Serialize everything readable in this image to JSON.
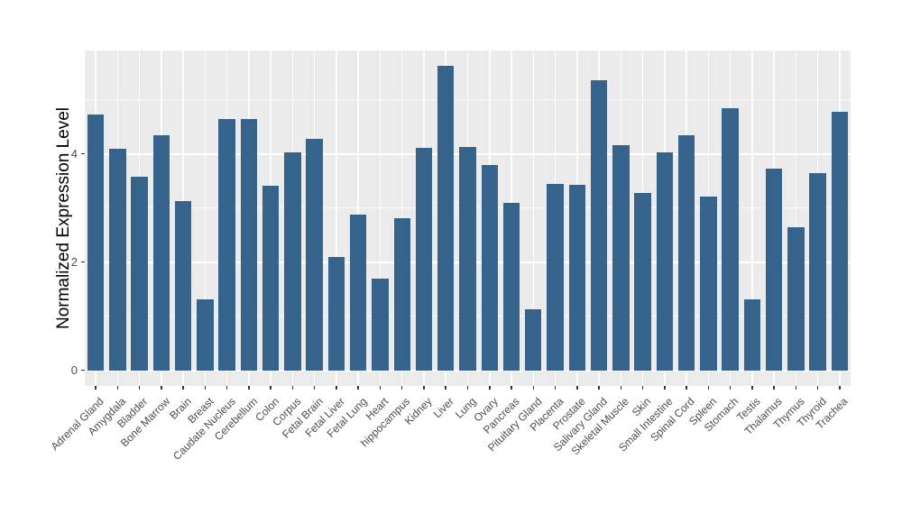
{
  "chart_data": {
    "type": "bar",
    "title": "",
    "xlabel": "",
    "ylabel": "Normalized Expression Level",
    "legend_position": "none",
    "grid": "on",
    "panel_background": "#EBEBEB",
    "gridline_color": "#FFFFFF",
    "bar_color": "#36638B",
    "ylim": [
      -0.29,
      5.91
    ],
    "y_major_ticks": [
      0,
      2,
      4
    ],
    "y_minor_gridlines": [
      1,
      3,
      5
    ],
    "categories": [
      "Adrenal Gland",
      "Amygdala",
      "Bladder",
      "Bone Marrow",
      "Brain",
      "Breast",
      "Caudate Nucleus",
      "Cerebellum",
      "Colon",
      "Corpus",
      "Fetal Brain",
      "Fetal Liver",
      "Fetal Lung",
      "Heart",
      "hippocampus",
      "Kidney",
      "Liver",
      "Lung",
      "Ovary",
      "Pancreas",
      "Pituitary Gland",
      "Placenta",
      "Prostate",
      "Salivary Gland",
      "Skeletal Muscle",
      "Skin",
      "Small Intestine",
      "Spinal Cord",
      "Spleen",
      "Stomach",
      "Testis",
      "Thalamus",
      "Thymus",
      "Thyroid",
      "Trachea"
    ],
    "values": [
      4.73,
      4.1,
      3.57,
      4.35,
      3.12,
      1.31,
      4.64,
      4.65,
      3.41,
      4.03,
      4.27,
      2.09,
      2.88,
      1.7,
      2.81,
      4.11,
      5.62,
      4.12,
      3.79,
      3.1,
      1.12,
      3.44,
      3.42,
      5.36,
      4.16,
      3.27,
      4.02,
      4.34,
      3.21,
      4.84,
      1.31,
      3.73,
      2.65,
      3.65,
      4.78
    ]
  }
}
